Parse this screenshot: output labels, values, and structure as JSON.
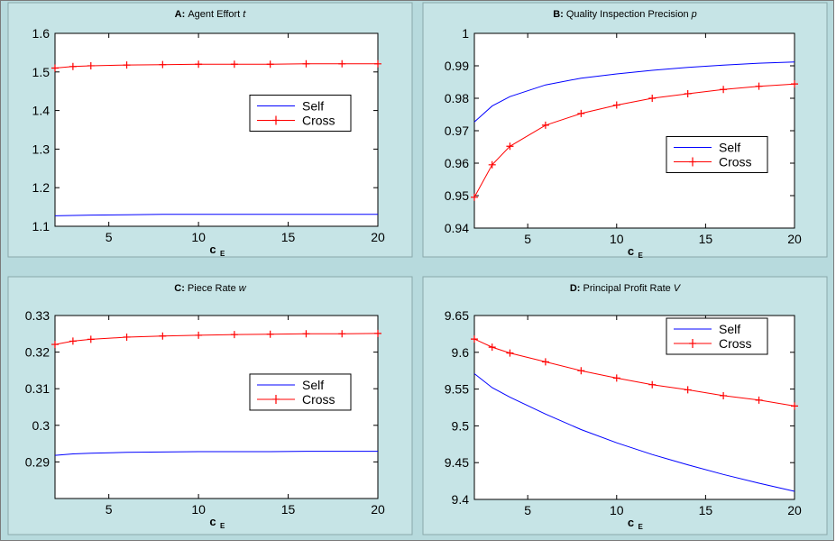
{
  "colors": {
    "background": "#b7dadd",
    "self": "#0000ff",
    "cross": "#ff0000",
    "panel_fill": "#ffffff",
    "axis": "#000000"
  },
  "chart_data": [
    {
      "type": "line",
      "title_prefix": "A:",
      "title_text": "Agent Effort",
      "title_var": "t",
      "xlabel": "c",
      "xlabel_sub": "E",
      "ylabel": "",
      "xlim": [
        2,
        20
      ],
      "ylim": [
        1.1,
        1.6
      ],
      "xticks": [
        5,
        10,
        15,
        20
      ],
      "yticks": [
        1.1,
        1.2,
        1.3,
        1.4,
        1.5,
        1.6
      ],
      "ytick_labels": [
        "1.1",
        "1.2",
        "1.3",
        "1.4",
        "1.5",
        "1.6"
      ],
      "legend_position": "center-right",
      "series": [
        {
          "name": "Self",
          "marker": "none",
          "x": [
            2,
            3,
            4,
            6,
            8,
            10,
            12,
            14,
            16,
            18,
            20
          ],
          "y": [
            1.127,
            1.128,
            1.129,
            1.13,
            1.131,
            1.131,
            1.131,
            1.131,
            1.131,
            1.131,
            1.131
          ]
        },
        {
          "name": "Cross",
          "marker": "plus",
          "x": [
            2,
            3,
            4,
            6,
            8,
            10,
            12,
            14,
            16,
            18,
            20
          ],
          "y": [
            1.51,
            1.514,
            1.516,
            1.518,
            1.519,
            1.52,
            1.52,
            1.52,
            1.521,
            1.521,
            1.521
          ]
        }
      ]
    },
    {
      "type": "line",
      "title_prefix": "B:",
      "title_text": "Quality Inspection Precision",
      "title_var": "p",
      "xlabel": "c",
      "xlabel_sub": "E",
      "ylabel": "",
      "xlim": [
        2,
        20
      ],
      "ylim": [
        0.94,
        1.0
      ],
      "xticks": [
        5,
        10,
        15,
        20
      ],
      "yticks": [
        0.94,
        0.95,
        0.96,
        0.97,
        0.98,
        0.99,
        1.0
      ],
      "ytick_labels": [
        "0.94",
        "0.95",
        "0.96",
        "0.97",
        "0.98",
        "0.99",
        "1"
      ],
      "legend_position": "lower-right",
      "series": [
        {
          "name": "Self",
          "marker": "none",
          "x": [
            2,
            3,
            4,
            6,
            8,
            10,
            12,
            14,
            16,
            18,
            20
          ],
          "y": [
            0.9727,
            0.9776,
            0.9805,
            0.9841,
            0.9862,
            0.9875,
            0.9886,
            0.9895,
            0.9902,
            0.9908,
            0.9912
          ]
        },
        {
          "name": "Cross",
          "marker": "plus",
          "x": [
            2,
            3,
            4,
            6,
            8,
            10,
            12,
            14,
            16,
            18,
            20
          ],
          "y": [
            0.9495,
            0.9595,
            0.9652,
            0.9717,
            0.9753,
            0.9779,
            0.98,
            0.9814,
            0.9827,
            0.9837,
            0.9844
          ]
        }
      ]
    },
    {
      "type": "line",
      "title_prefix": "C:",
      "title_text": "Piece Rate",
      "title_var": "w",
      "xlabel": "c",
      "xlabel_sub": "E",
      "ylabel": "",
      "xlim": [
        2,
        20
      ],
      "ylim": [
        0.28,
        0.33
      ],
      "xticks": [
        5,
        10,
        15,
        20
      ],
      "yticks": [
        0.29,
        0.3,
        0.31,
        0.32,
        0.33
      ],
      "ytick_labels": [
        "0.29",
        "0.3",
        "0.31",
        "0.32",
        "0.33"
      ],
      "legend_position": "center-right",
      "series": [
        {
          "name": "Self",
          "marker": "none",
          "x": [
            2,
            3,
            4,
            6,
            8,
            10,
            12,
            14,
            16,
            18,
            20
          ],
          "y": [
            0.2918,
            0.2922,
            0.2924,
            0.2926,
            0.2927,
            0.2928,
            0.2928,
            0.2928,
            0.2929,
            0.2929,
            0.2929
          ]
        },
        {
          "name": "Cross",
          "marker": "plus",
          "x": [
            2,
            3,
            4,
            6,
            8,
            10,
            12,
            14,
            16,
            18,
            20
          ],
          "y": [
            0.3221,
            0.323,
            0.3235,
            0.3241,
            0.3244,
            0.3246,
            0.3248,
            0.3249,
            0.325,
            0.325,
            0.3251
          ]
        }
      ]
    },
    {
      "type": "line",
      "title_prefix": "D:",
      "title_text": "Principal Profit Rate",
      "title_var": "V",
      "xlabel": "c",
      "xlabel_sub": "E",
      "ylabel": "",
      "xlim": [
        2,
        20
      ],
      "ylim": [
        9.4,
        9.65
      ],
      "xticks": [
        5,
        10,
        15,
        20
      ],
      "yticks": [
        9.4,
        9.45,
        9.5,
        9.55,
        9.6,
        9.65
      ],
      "ytick_labels": [
        "9.4",
        "9.45",
        "9.5",
        "9.55",
        "9.6",
        "9.65"
      ],
      "legend_position": "top-right",
      "series": [
        {
          "name": "Self",
          "marker": "none",
          "x": [
            2,
            3,
            4,
            6,
            8,
            10,
            12,
            14,
            16,
            18,
            20
          ],
          "y": [
            9.571,
            9.552,
            9.539,
            9.516,
            9.495,
            9.477,
            9.461,
            9.447,
            9.434,
            9.422,
            9.411
          ]
        },
        {
          "name": "Cross",
          "marker": "plus",
          "x": [
            2,
            3,
            4,
            6,
            8,
            10,
            12,
            14,
            16,
            18,
            20
          ],
          "y": [
            9.618,
            9.607,
            9.599,
            9.587,
            9.575,
            9.565,
            9.556,
            9.549,
            9.541,
            9.535,
            9.527
          ]
        }
      ]
    }
  ]
}
